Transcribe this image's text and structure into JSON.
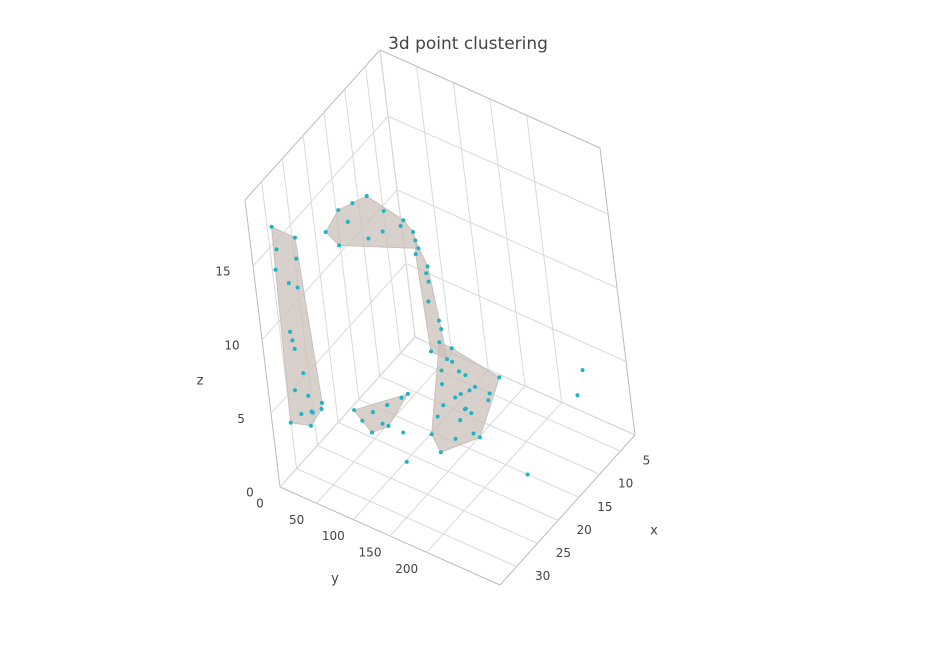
{
  "chart_data": {
    "type": "scatter3d",
    "title": "3d point clustering",
    "xlabel": "x",
    "ylabel": "y",
    "zlabel": "z",
    "xlim": [
      34,
      1.5
    ],
    "ylim": [
      0,
      300
    ],
    "zlim": [
      0,
      19.5
    ],
    "xticks": [
      5,
      10,
      15,
      20,
      25,
      30
    ],
    "yticks": [
      0,
      50,
      100,
      150,
      200
    ],
    "zticks": [
      0,
      5,
      10,
      15
    ],
    "grid": true,
    "point_color": "#1fb3c6",
    "mesh_color": "#c9c0ba",
    "series": [
      {
        "mesh": true,
        "x": [
          32,
          33,
          31,
          32,
          31,
          33,
          32,
          32,
          31,
          33,
          32,
          31,
          32,
          33,
          32,
          31,
          32,
          33,
          32,
          31
        ],
        "y": [
          20,
          30,
          45,
          35,
          40,
          25,
          50,
          30,
          25,
          35,
          40,
          55,
          30,
          20,
          45,
          35,
          60,
          50,
          25,
          40
        ],
        "z": [
          17.5,
          16.5,
          17,
          14,
          13.5,
          15,
          16,
          10,
          9,
          11,
          8,
          6,
          5,
          4.5,
          5.5,
          4,
          6,
          7,
          6.5,
          5
        ]
      },
      {
        "mesh": true,
        "x": [
          28,
          27,
          26,
          25,
          24,
          23,
          22,
          26,
          25,
          24,
          27,
          23,
          22
        ],
        "y": [
          70,
          85,
          100,
          115,
          130,
          145,
          155,
          90,
          110,
          125,
          80,
          150,
          160
        ],
        "z": [
          17,
          18.5,
          19,
          19.5,
          18.5,
          17.5,
          17,
          17.5,
          16.5,
          17,
          16,
          18,
          16
        ]
      },
      {
        "mesh": true,
        "x": [
          22,
          21,
          22,
          21,
          20,
          22,
          21,
          20,
          22,
          21
        ],
        "y": [
          155,
          160,
          165,
          170,
          165,
          160,
          175,
          155,
          170,
          150
        ],
        "z": [
          15.5,
          14,
          12.5,
          11,
          10,
          9,
          8.5,
          13,
          15,
          16
        ]
      },
      {
        "mesh": true,
        "x": [
          22,
          21,
          20,
          23,
          19,
          18,
          22,
          21,
          20,
          24,
          19,
          18,
          17,
          22,
          21,
          20,
          23,
          19,
          18,
          17,
          21,
          20,
          22,
          24,
          19
        ],
        "y": [
          170,
          180,
          175,
          165,
          185,
          190,
          190,
          200,
          195,
          160,
          170,
          180,
          200,
          180,
          165,
          185,
          175,
          195,
          210,
          220,
          190,
          160,
          200,
          170,
          175
        ],
        "z": [
          7,
          6,
          8,
          5,
          7,
          6,
          5,
          4,
          6.5,
          4,
          8.5,
          4,
          5,
          3.5,
          7.5,
          5,
          6,
          3,
          6,
          7,
          8,
          9,
          6,
          3,
          5.5
        ]
      },
      {
        "mesh": true,
        "x": [
          30,
          29,
          31,
          28,
          30,
          29,
          31,
          28,
          30
        ],
        "y": [
          120,
          135,
          110,
          150,
          140,
          125,
          100,
          160,
          115
        ],
        "z": [
          6.5,
          7,
          6,
          7.5,
          6,
          5.5,
          6.5,
          8,
          5
        ]
      },
      {
        "mesh": false,
        "x": [
          8,
          9,
          15,
          30,
          30
        ],
        "y": [
          280,
          275,
          230,
          160,
          160
        ],
        "z": [
          6,
          4.5,
          0,
          6,
          4
        ]
      }
    ]
  }
}
